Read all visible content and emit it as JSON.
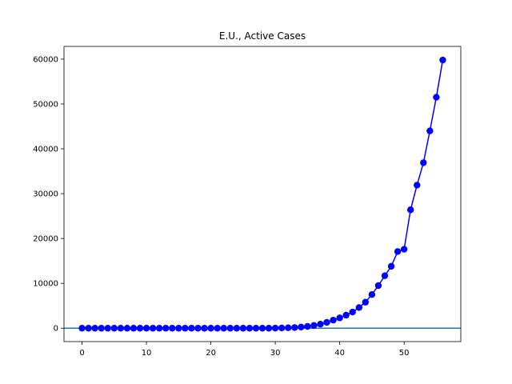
{
  "chart_data": {
    "type": "line",
    "title": "E.U., Active Cases",
    "xlabel": "",
    "ylabel": "",
    "xlim": [
      -2.8,
      58.8
    ],
    "ylim": [
      -2990,
      62840
    ],
    "grid": false,
    "x_ticks": [
      0,
      10,
      20,
      30,
      40,
      50
    ],
    "y_ticks": [
      0,
      10000,
      20000,
      30000,
      40000,
      50000,
      60000
    ],
    "reference_line_y": 0,
    "colors": {
      "series": "#0000ff",
      "reference": "#1f77b4"
    },
    "series": [
      {
        "x": [
          0,
          1,
          2,
          3,
          4,
          5,
          6,
          7,
          8,
          9,
          10,
          11,
          12,
          13,
          14,
          15,
          16,
          17,
          18,
          19,
          20,
          21,
          22,
          23,
          24,
          25,
          26,
          27,
          28,
          29,
          30,
          31,
          32,
          33,
          34,
          35,
          36,
          37,
          38,
          39,
          40,
          41,
          42,
          43,
          44,
          45,
          46,
          47,
          48,
          49,
          50,
          51,
          52,
          53,
          54,
          55,
          56
        ],
        "values": [
          0,
          0,
          0,
          0,
          0,
          0,
          0,
          0,
          0,
          0,
          0,
          0,
          0,
          0,
          0,
          0,
          0,
          0,
          0,
          0,
          0,
          0,
          0,
          0,
          0,
          0,
          0,
          0,
          0,
          0,
          20,
          50,
          100,
          150,
          250,
          400,
          600,
          900,
          1300,
          1800,
          2300,
          2900,
          3600,
          4600,
          5800,
          7500,
          9500,
          11700,
          13800,
          17100,
          17600,
          26400,
          31900,
          36900,
          44000,
          51500,
          59800
        ]
      }
    ]
  }
}
